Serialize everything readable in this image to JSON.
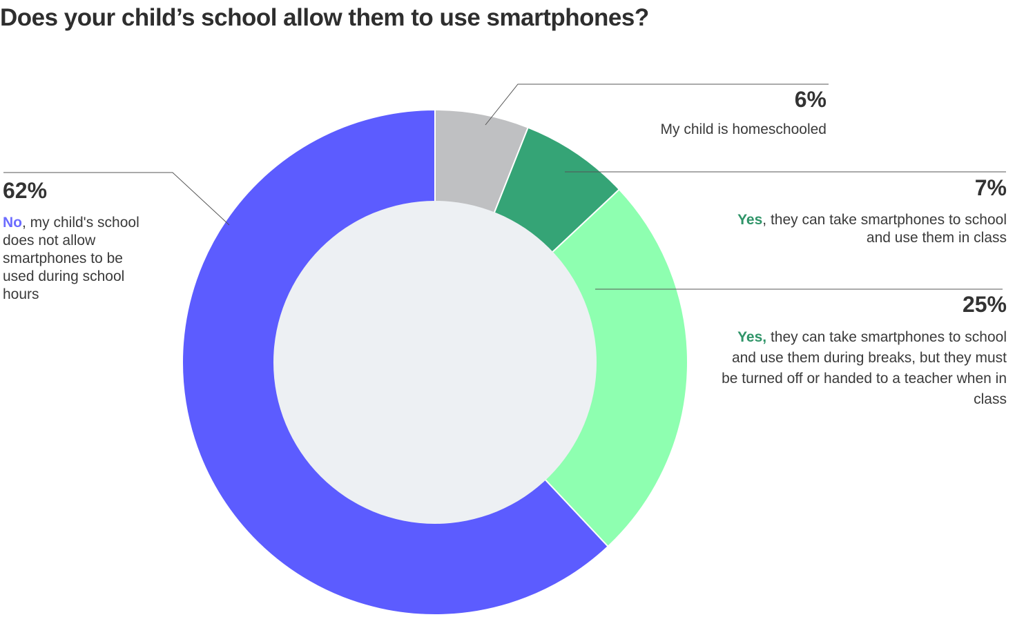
{
  "title": "Does your child’s school allow them to use smartphones?",
  "chart_data": {
    "type": "pie",
    "variant": "donut",
    "title": "Does your child’s school allow them to use smartphones?",
    "slices": [
      {
        "value": 6,
        "pct_label": "6%",
        "color": "#bfc0c2",
        "highlight": "",
        "highlight_color": "",
        "text": "My child is homeschooled"
      },
      {
        "value": 7,
        "pct_label": "7%",
        "color": "#35a476",
        "highlight": "Yes",
        "highlight_color": "#2f9468",
        "text": ", they can take smartphones to school and use them in class"
      },
      {
        "value": 25,
        "pct_label": "25%",
        "color": "#8effb0",
        "highlight": "Yes,",
        "highlight_color": "#2f9468",
        "text": " they can take smartphones to school and use them during breaks, but they must be turned off or handed to a teacher when in class"
      },
      {
        "value": 62,
        "pct_label": "62%",
        "color": "#5c5cff",
        "highlight": "No",
        "highlight_color": "#6c6cff",
        "text": ", my child's school does not allow smartphones to be used during school hours"
      }
    ],
    "center_color": "#edf0f3",
    "legend": "none",
    "grid": false
  }
}
